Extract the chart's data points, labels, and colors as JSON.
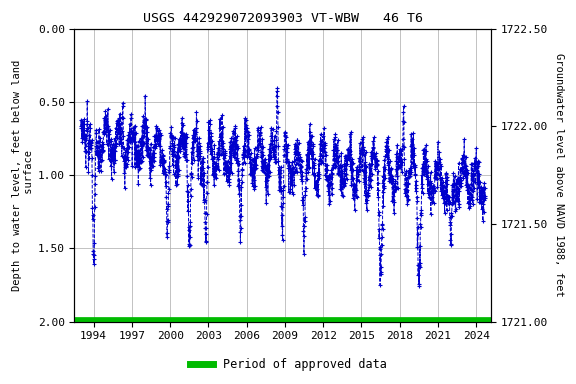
{
  "title": "USGS 442929072093903 VT-WBW   46 T6",
  "ylabel_left": "Depth to water level, feet below land\n surface",
  "ylabel_right": "Groundwater level above NAVD 1988, feet",
  "ylim_left": [
    0.0,
    2.0
  ],
  "ylim_right_top": 1722.5,
  "ylim_right_bottom": 1721.0,
  "yticks_left": [
    0.0,
    0.5,
    1.0,
    1.5,
    2.0
  ],
  "yticks_right": [
    1722.5,
    1722.0,
    1721.5,
    1721.0
  ],
  "xticks": [
    1994,
    1997,
    2000,
    2003,
    2006,
    2009,
    2012,
    2015,
    2018,
    2021,
    2024
  ],
  "xlim": [
    1992.5,
    2025.2
  ],
  "line_color": "#0000CC",
  "bar_color": "#00BB00",
  "background_color": "#ffffff",
  "grid_color": "#aaaaaa",
  "legend_label": "Period of approved data",
  "x_start_year": 1993.0,
  "x_end_year": 2024.7,
  "surface_elevation": 1722.5,
  "seed": 42
}
